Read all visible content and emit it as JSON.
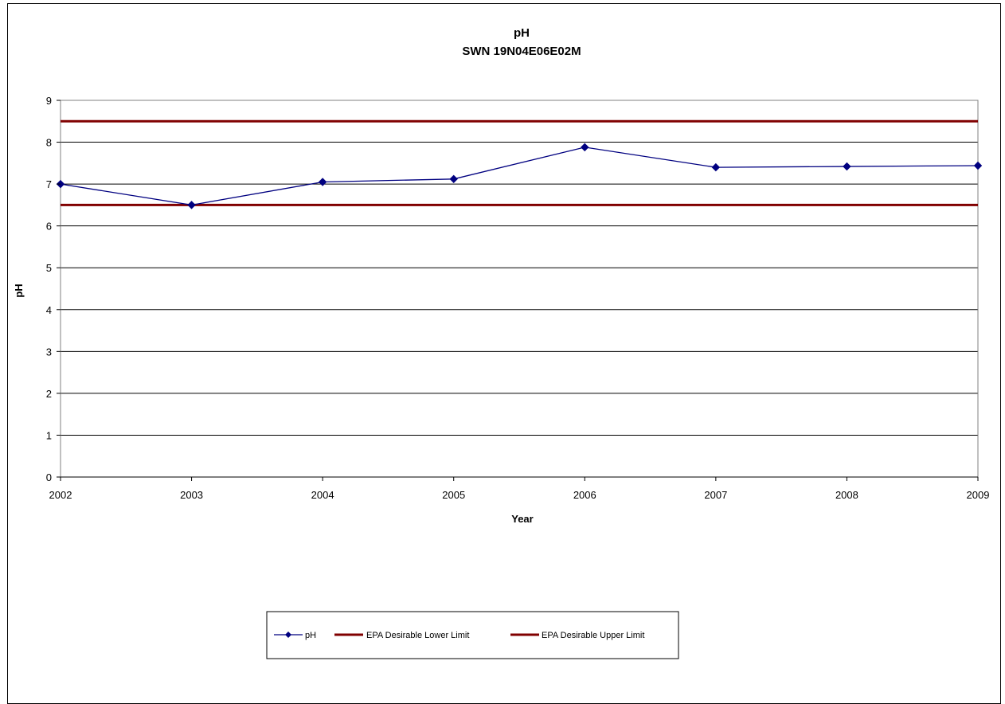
{
  "chart_data": {
    "type": "line",
    "title": "pH",
    "subtitle": "SWN 19N04E06E02M",
    "xlabel": "Year",
    "ylabel": "pH",
    "categories": [
      "2002",
      "2003",
      "2004",
      "2005",
      "2006",
      "2007",
      "2008",
      "2009"
    ],
    "ylim": [
      0,
      9
    ],
    "yticks": [
      "0",
      "1",
      "2",
      "3",
      "4",
      "5",
      "6",
      "7",
      "8",
      "9"
    ],
    "grid": true,
    "legend_position": "bottom",
    "series": [
      {
        "name": "pH",
        "values": [
          7.0,
          6.5,
          7.05,
          7.12,
          7.88,
          7.4,
          7.42,
          7.44
        ],
        "color": "#000080",
        "marker": "diamond"
      },
      {
        "name": "EPA Desirable Lower Limit",
        "values": [
          6.5,
          6.5,
          6.5,
          6.5,
          6.5,
          6.5,
          6.5,
          6.5
        ],
        "color": "#800000"
      },
      {
        "name": "EPA Desirable Upper Limit",
        "values": [
          8.5,
          8.5,
          8.5,
          8.5,
          8.5,
          8.5,
          8.5,
          8.5
        ],
        "color": "#800000"
      }
    ]
  }
}
